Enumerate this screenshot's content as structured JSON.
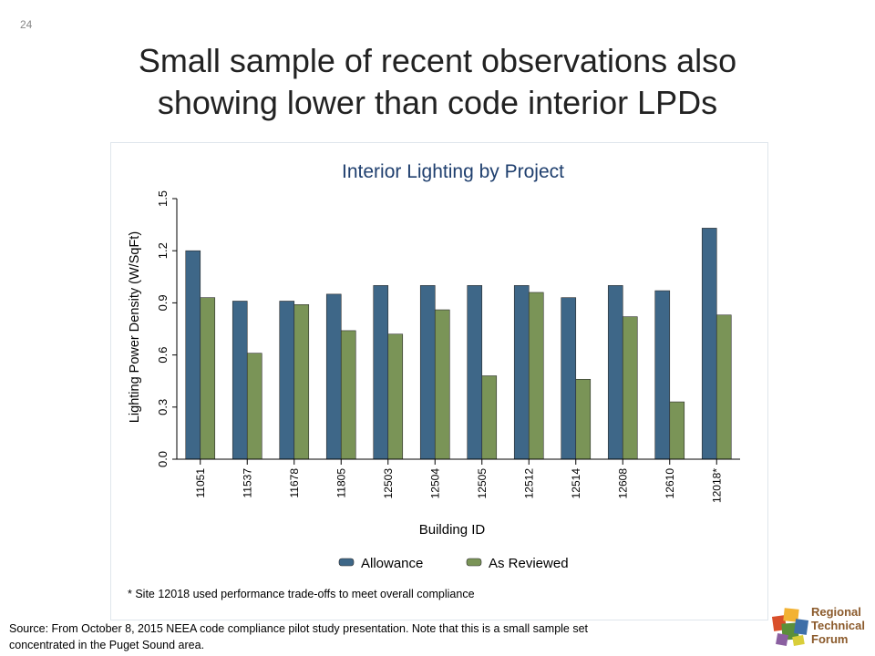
{
  "slide": {
    "number": "24",
    "title_line1": "Small sample of recent observations also",
    "title_line2": "showing lower than code interior LPDs",
    "source_line1": "Source: From October 8, 2015 NEEA code compliance pilot study presentation. Note that this is a small sample set",
    "source_line2": "concentrated in the Puget Sound area."
  },
  "logo": {
    "line1": "Regional",
    "line2": "Technical",
    "line3": "Forum"
  },
  "chart_data": {
    "type": "bar",
    "title": "Interior Lighting by Project",
    "xlabel": "Building ID",
    "ylabel": "Lighting Power Density (W/SqFt)",
    "ylim": [
      0,
      1.5
    ],
    "yticks": [
      "0.0",
      "0.3",
      "0.6",
      "0.9",
      "1.2",
      "1.5"
    ],
    "grid": false,
    "legend_position": "bottom",
    "categories": [
      "11051",
      "11537",
      "11678",
      "11805",
      "12503",
      "12504",
      "12505",
      "12512",
      "12514",
      "12608",
      "12610",
      "12018*"
    ],
    "series": [
      {
        "name": "Allowance",
        "color": "#3e6788",
        "values": [
          1.2,
          0.91,
          0.91,
          0.95,
          1.0,
          1.0,
          1.0,
          1.0,
          0.93,
          1.0,
          0.97,
          1.33
        ]
      },
      {
        "name": "As Reviewed",
        "color": "#7a9457",
        "values": [
          0.93,
          0.61,
          0.89,
          0.74,
          0.72,
          0.86,
          0.48,
          0.96,
          0.46,
          0.82,
          0.33,
          0.83
        ]
      }
    ],
    "footnote": "* Site 12018 used performance trade-offs to meet overall compliance"
  }
}
